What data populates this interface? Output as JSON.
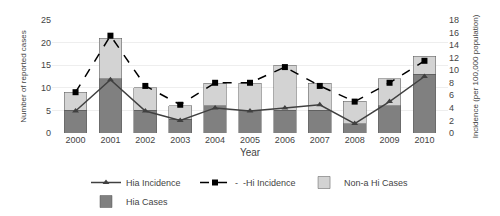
{
  "chart_data": {
    "type": "bar",
    "stacked": true,
    "categories": [
      "2000",
      "2001",
      "2002",
      "2003",
      "2004",
      "2005",
      "2006",
      "2007",
      "2008",
      "2009",
      "2010"
    ],
    "xlabel": "Year",
    "ylabel": "Number of reported cases",
    "y2label": "Incidence (per 100,000 population)",
    "ylim": [
      0,
      25
    ],
    "yticks": [
      0,
      5,
      10,
      15,
      20,
      25
    ],
    "y2lim": [
      0,
      18
    ],
    "y2ticks": [
      0,
      2,
      4,
      6,
      8,
      10,
      12,
      14,
      16,
      18
    ],
    "grid": true,
    "legend": "bottom",
    "series": [
      {
        "name": "Hia Cases",
        "type": "bar",
        "color": "#808080",
        "values": [
          5,
          12,
          5,
          3,
          6,
          5,
          5,
          5,
          2,
          6,
          13
        ]
      },
      {
        "name": "Non-a Hi Cases",
        "type": "bar",
        "color": "#d3d3d3",
        "values": [
          4,
          9,
          5,
          3,
          5,
          6,
          10,
          6,
          5,
          6,
          4
        ]
      },
      {
        "name": "-  -Hi Incidence",
        "type": "line",
        "axis": "y2",
        "color": "#000000",
        "marker": "square",
        "line_style": "dashed",
        "values": [
          6.5,
          15.5,
          7.5,
          4.5,
          8.0,
          8.0,
          10.5,
          7.5,
          5.0,
          8.0,
          11.5
        ]
      },
      {
        "name": "Hia Incidence",
        "type": "line",
        "axis": "y2",
        "color": "#404040",
        "marker": "triangle",
        "line_style": "solid",
        "values": [
          3.5,
          8.5,
          3.5,
          2.0,
          4.0,
          3.5,
          4.0,
          4.5,
          1.5,
          5.0,
          9.0
        ]
      }
    ]
  }
}
